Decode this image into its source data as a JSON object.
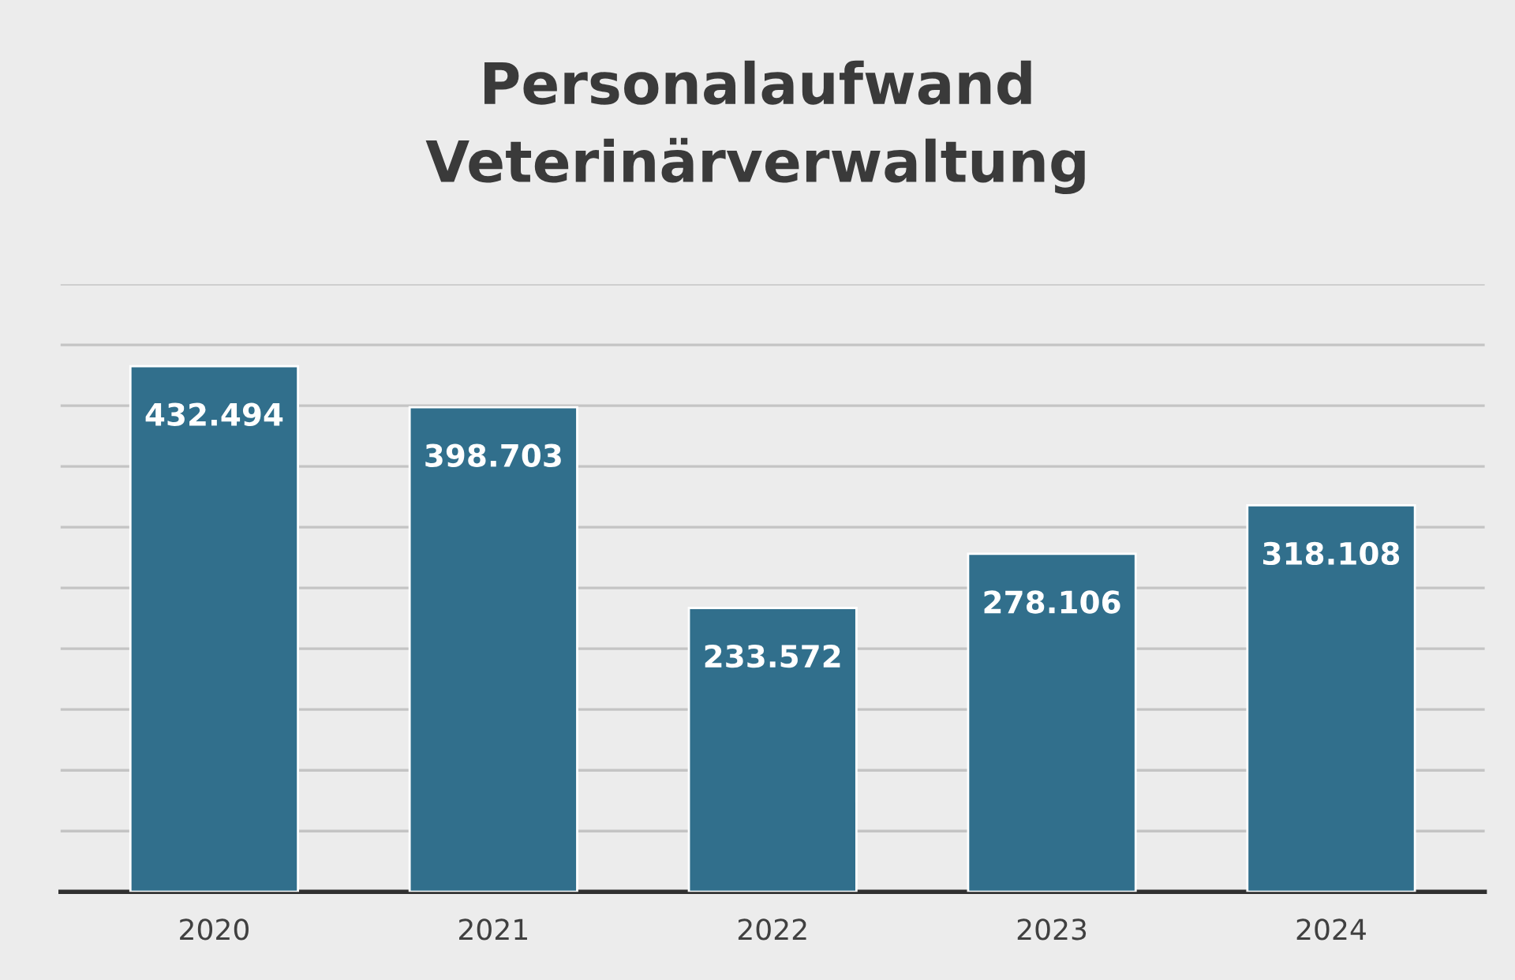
{
  "chart_data": {
    "type": "bar",
    "title": "Personalaufwand\nVeterinärverwaltung",
    "categories": [
      "2020",
      "2021",
      "2022",
      "2023",
      "2024"
    ],
    "values": [
      432494,
      398703,
      233572,
      278106,
      318108
    ],
    "value_labels": [
      "432.494",
      "398.703",
      "233.572",
      "278.106",
      "318.108"
    ],
    "color": "#316f8c",
    "ylim": [
      0,
      500000
    ],
    "yticks": [
      {
        "value": 0,
        "label": null
      },
      {
        "value": 50000,
        "label": null
      },
      {
        "value": 100000,
        "label": null
      },
      {
        "value": 150000,
        "label": null
      },
      {
        "value": 200000,
        "label": null
      },
      {
        "value": 250000,
        "label": null
      },
      {
        "value": 300000,
        "label": null
      },
      {
        "value": 350000,
        "label": null
      },
      {
        "value": 400000,
        "label": null
      },
      {
        "value": 450000,
        "label": null
      },
      {
        "value": 500000,
        "label": null
      }
    ],
    "grid": "y",
    "tick_labels": "x"
  }
}
